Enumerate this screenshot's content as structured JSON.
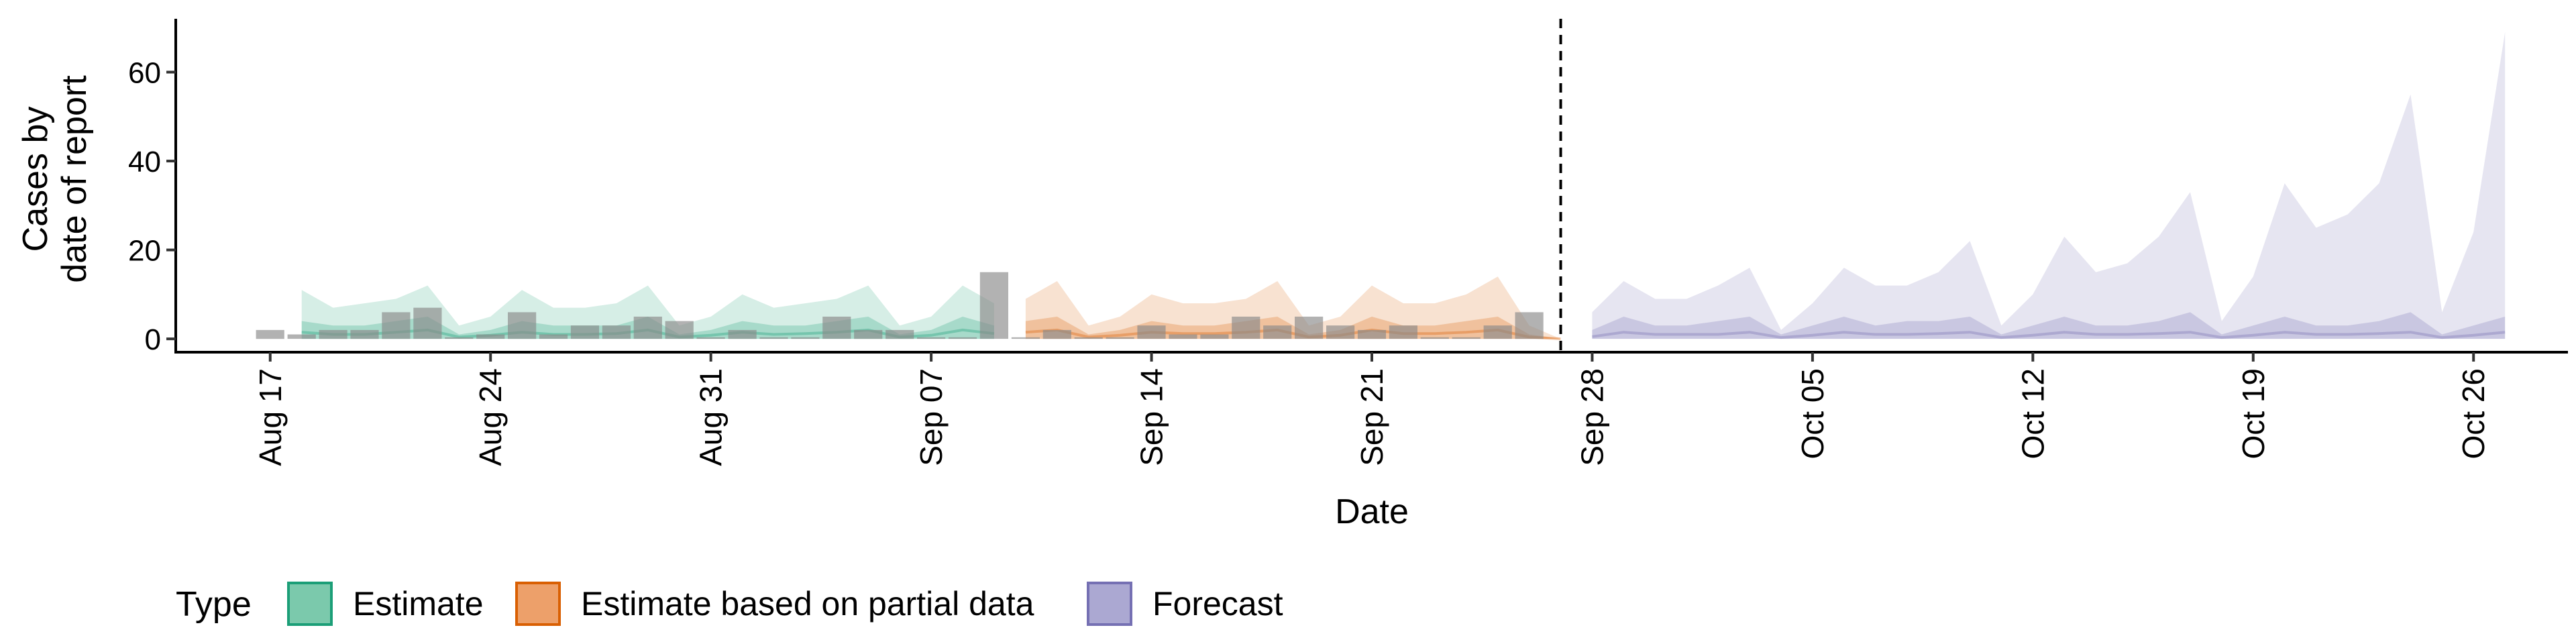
{
  "chart_data": {
    "type": "area",
    "xlabel": "Date",
    "ylabel_lines": [
      "Cases by",
      "date of report"
    ],
    "ylim": [
      -3,
      72
    ],
    "y_ticks": [
      0,
      20,
      40,
      60
    ],
    "x_range": [
      "2020-08-14",
      "2020-10-29"
    ],
    "x_ticks": [
      {
        "date": "2020-08-17",
        "label": "Aug 17"
      },
      {
        "date": "2020-08-24",
        "label": "Aug 24"
      },
      {
        "date": "2020-08-31",
        "label": "Aug 31"
      },
      {
        "date": "2020-09-07",
        "label": "Sep 07"
      },
      {
        "date": "2020-09-14",
        "label": "Sep 14"
      },
      {
        "date": "2020-09-21",
        "label": "Sep 21"
      },
      {
        "date": "2020-09-28",
        "label": "Sep 28"
      },
      {
        "date": "2020-10-05",
        "label": "Oct 05"
      },
      {
        "date": "2020-10-12",
        "label": "Oct 12"
      },
      {
        "date": "2020-10-19",
        "label": "Oct 19"
      },
      {
        "date": "2020-10-26",
        "label": "Oct 26"
      }
    ],
    "forecast_start_line": "2020-09-27",
    "legend": {
      "title": "Type",
      "position": "bottom",
      "entries": [
        {
          "label": "Estimate",
          "fill": "#7bc9ac",
          "stroke": "#1b9e77"
        },
        {
          "label": "Estimate based on partial data",
          "fill": "#eda06a",
          "stroke": "#d95f02"
        },
        {
          "label": "Forecast",
          "fill": "#aba8d2",
          "stroke": "#7570b3"
        }
      ]
    },
    "series": [
      {
        "name": "Estimate",
        "color": "#1b9e77",
        "dates": [
          "2020-08-18",
          "2020-08-19",
          "2020-08-20",
          "2020-08-21",
          "2020-08-22",
          "2020-08-23",
          "2020-08-24",
          "2020-08-25",
          "2020-08-26",
          "2020-08-27",
          "2020-08-28",
          "2020-08-29",
          "2020-08-30",
          "2020-08-31",
          "2020-09-01",
          "2020-09-02",
          "2020-09-03",
          "2020-09-04",
          "2020-09-05",
          "2020-09-06",
          "2020-09-07",
          "2020-09-08",
          "2020-09-09"
        ],
        "upper90": [
          11,
          7,
          8,
          9,
          12,
          3,
          5,
          11,
          7,
          7,
          8,
          12,
          3,
          5,
          10,
          7,
          8,
          9,
          12,
          3,
          5,
          12,
          8
        ],
        "upper50": [
          4,
          3,
          3,
          4,
          5,
          1,
          2,
          4,
          3,
          3,
          3,
          5,
          1,
          2,
          4,
          3,
          3,
          4,
          5,
          1,
          2,
          5,
          3
        ],
        "median": [
          1.5,
          1,
          1,
          1.5,
          2,
          0.4,
          0.8,
          1.5,
          1,
          1,
          1.2,
          2,
          0.4,
          0.8,
          1.5,
          1,
          1.2,
          1.5,
          2,
          0.4,
          0.8,
          2,
          1.2
        ]
      },
      {
        "name": "Estimate based on partial data",
        "color": "#d95f02",
        "dates": [
          "2020-09-10",
          "2020-09-11",
          "2020-09-12",
          "2020-09-13",
          "2020-09-14",
          "2020-09-15",
          "2020-09-16",
          "2020-09-17",
          "2020-09-18",
          "2020-09-19",
          "2020-09-20",
          "2020-09-21",
          "2020-09-22",
          "2020-09-23",
          "2020-09-24",
          "2020-09-25",
          "2020-09-26",
          "2020-09-27"
        ],
        "upper90": [
          9,
          13,
          3,
          5,
          10,
          8,
          8,
          9,
          13,
          3,
          5,
          12,
          8,
          8,
          10,
          14,
          3,
          0
        ],
        "upper50": [
          4,
          5,
          1,
          2,
          4,
          3,
          3,
          4,
          5,
          1,
          2,
          5,
          3,
          3,
          4,
          5,
          1,
          0
        ],
        "median": [
          1.5,
          2,
          0.4,
          0.8,
          1.5,
          1.2,
          1.2,
          1.5,
          2,
          0.4,
          0.8,
          2,
          1.2,
          1.2,
          1.5,
          2,
          0.4,
          0
        ]
      },
      {
        "name": "Forecast",
        "color": "#7570b3",
        "dates": [
          "2020-09-28",
          "2020-09-29",
          "2020-09-30",
          "2020-10-01",
          "2020-10-02",
          "2020-10-03",
          "2020-10-04",
          "2020-10-05",
          "2020-10-06",
          "2020-10-07",
          "2020-10-08",
          "2020-10-09",
          "2020-10-10",
          "2020-10-11",
          "2020-10-12",
          "2020-10-13",
          "2020-10-14",
          "2020-10-15",
          "2020-10-16",
          "2020-10-17",
          "2020-10-18",
          "2020-10-19",
          "2020-10-20",
          "2020-10-21",
          "2020-10-22",
          "2020-10-23",
          "2020-10-24",
          "2020-10-25",
          "2020-10-26",
          "2020-10-27"
        ],
        "upper90": [
          6,
          13,
          9,
          9,
          12,
          16,
          2,
          8,
          16,
          12,
          12,
          15,
          22,
          3,
          10,
          23,
          15,
          17,
          23,
          33,
          4,
          14,
          35,
          25,
          28,
          35,
          55,
          6,
          24,
          69
        ],
        "upper50": [
          2,
          5,
          3,
          3,
          4,
          5,
          1,
          3,
          5,
          3,
          4,
          4,
          5,
          1,
          3,
          5,
          3,
          3,
          4,
          6,
          1,
          3,
          5,
          3,
          3,
          4,
          6,
          1,
          3,
          5
        ],
        "median": [
          0.5,
          1.5,
          1,
          1,
          1,
          1.5,
          0.3,
          0.8,
          1.5,
          1,
          1,
          1.2,
          1.5,
          0.3,
          0.8,
          1.5,
          1,
          1,
          1.2,
          1.5,
          0.3,
          0.8,
          1.5,
          1,
          1,
          1.2,
          1.5,
          0.3,
          0.8,
          1.5
        ]
      }
    ],
    "reported_cases": {
      "color": "#888888",
      "dates": [
        "2020-08-17",
        "2020-08-18",
        "2020-08-19",
        "2020-08-20",
        "2020-08-21",
        "2020-08-22",
        "2020-08-23",
        "2020-08-24",
        "2020-08-25",
        "2020-08-26",
        "2020-08-27",
        "2020-08-28",
        "2020-08-29",
        "2020-08-30",
        "2020-08-31",
        "2020-09-01",
        "2020-09-02",
        "2020-09-03",
        "2020-09-04",
        "2020-09-05",
        "2020-09-06",
        "2020-09-07",
        "2020-09-08",
        "2020-09-09",
        "2020-09-10",
        "2020-09-11",
        "2020-09-12",
        "2020-09-13",
        "2020-09-14",
        "2020-09-15",
        "2020-09-16",
        "2020-09-17",
        "2020-09-18",
        "2020-09-19",
        "2020-09-20",
        "2020-09-21",
        "2020-09-22",
        "2020-09-23",
        "2020-09-24",
        "2020-09-25",
        "2020-09-26"
      ],
      "values": [
        2,
        1,
        2,
        2,
        6,
        7,
        0,
        1,
        6,
        1,
        3,
        3,
        5,
        4,
        0,
        2,
        0,
        0,
        5,
        2,
        2,
        0,
        0,
        15,
        0,
        2,
        0,
        0,
        3,
        1,
        1,
        5,
        3,
        5,
        3,
        2,
        3,
        0,
        0,
        3,
        6
      ]
    }
  }
}
